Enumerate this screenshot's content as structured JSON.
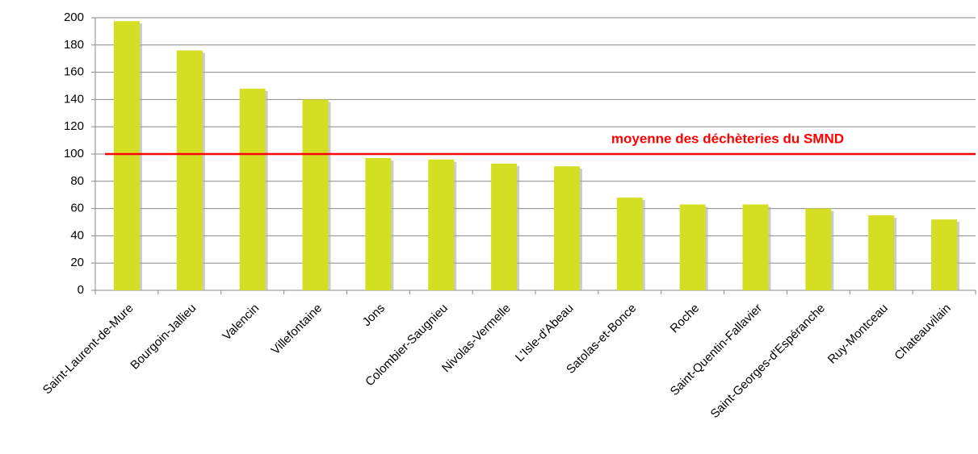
{
  "chart_data": {
    "type": "bar",
    "categories": [
      "Saint-Laurent-de-Mure",
      "Bourgoin-Jallieu",
      "Valencin",
      "Villefontaine",
      "Jons",
      "Colombier-Saugnieu",
      "Nivolas-Vermelle",
      "L'Isle-d'Abeau",
      "Satolas-et-Bonce",
      "Roche",
      "Saint-Quentin-Fallavier",
      "Saint-Georges-d'Espéranche",
      "Ruy-Montceau",
      "Chateauvilain"
    ],
    "values": [
      197.5,
      176,
      148,
      140,
      97,
      96,
      93,
      91,
      68,
      63,
      63,
      60,
      55,
      52
    ],
    "color": "#d4df23",
    "ylim": [
      0,
      200
    ],
    "yticks": [
      0,
      20,
      40,
      60,
      80,
      100,
      120,
      140,
      160,
      180,
      200
    ],
    "grid": true,
    "reference_line": {
      "value": 100,
      "label": "moyenne des déchèteries du SMND",
      "color": "#ff0000"
    }
  }
}
